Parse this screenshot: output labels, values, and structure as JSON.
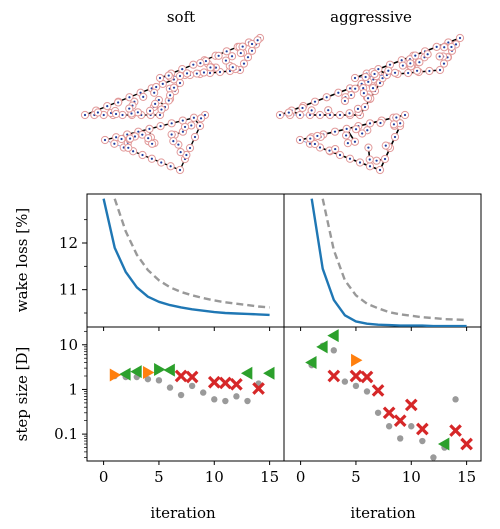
{
  "colors": {
    "blue": "#1f77b4",
    "orange": "#ff7f0e",
    "green": "#2ca02c",
    "red": "#d62728",
    "gray": "#9a9a9a",
    "dash_gray": "#999999",
    "turbine_ring": "#e29a9a",
    "turbine_dot": "#1f3fa0",
    "layout_line": "#000000"
  },
  "layout_titles": {
    "left": "soft",
    "right": "aggressive"
  },
  "axes_text": {
    "wake_ylabel": "wake loss [%]",
    "step_ylabel": "step size [D]",
    "xlabel_left": "iteration",
    "xlabel_right": "iteration"
  },
  "chart_data": [
    {
      "type": "line",
      "panel": "wake-soft",
      "ylabel": "wake loss [%]",
      "xlim": [
        -1.5,
        16.3
      ],
      "ylim": [
        10.2,
        13.05
      ],
      "yticks": [
        11,
        12
      ],
      "minor_yticks": [
        10.5,
        11.5,
        12.5
      ],
      "xticks": [
        0,
        5,
        10,
        15
      ],
      "series": [
        {
          "style": "solid-blue",
          "x": [
            0,
            1,
            2,
            3,
            4,
            5,
            6,
            7,
            8,
            9,
            10,
            11,
            12,
            13,
            14,
            15
          ],
          "y": [
            12.95,
            11.9,
            11.38,
            11.05,
            10.85,
            10.74,
            10.67,
            10.62,
            10.58,
            10.55,
            10.52,
            10.5,
            10.49,
            10.48,
            10.47,
            10.46
          ]
        },
        {
          "style": "dashed-gray",
          "x": [
            1,
            2,
            3,
            4,
            5,
            6,
            7,
            8,
            9,
            10,
            11,
            12,
            13,
            14,
            15
          ],
          "y": [
            12.95,
            12.25,
            11.75,
            11.42,
            11.2,
            11.05,
            10.95,
            10.88,
            10.82,
            10.77,
            10.73,
            10.7,
            10.67,
            10.64,
            10.62
          ]
        }
      ]
    },
    {
      "type": "line",
      "panel": "wake-aggressive",
      "xlim": [
        -1.5,
        16.3
      ],
      "ylim": [
        10.2,
        13.05
      ],
      "xticks": [
        0,
        5,
        10,
        15
      ],
      "series": [
        {
          "style": "solid-blue",
          "x": [
            1,
            2,
            3,
            4,
            5,
            6,
            7,
            8,
            9,
            10,
            11,
            12,
            13,
            14,
            15
          ],
          "y": [
            12.95,
            11.45,
            10.78,
            10.45,
            10.32,
            10.27,
            10.25,
            10.24,
            10.23,
            10.23,
            10.23,
            10.22,
            10.22,
            10.22,
            10.22
          ]
        },
        {
          "style": "dashed-gray",
          "x": [
            2,
            3,
            4,
            5,
            6,
            7,
            8,
            9,
            10,
            11,
            12,
            13,
            14,
            15
          ],
          "y": [
            12.95,
            11.85,
            11.2,
            10.88,
            10.7,
            10.6,
            10.52,
            10.47,
            10.44,
            10.41,
            10.39,
            10.37,
            10.36,
            10.35
          ]
        }
      ]
    },
    {
      "type": "scatter",
      "panel": "step-soft",
      "ylabel": "step size [D]",
      "yscale": "log",
      "xlabel": "iteration",
      "xlim": [
        -1.5,
        16.3
      ],
      "ylim": [
        0.025,
        25
      ],
      "yticks": [
        0.1,
        1,
        10
      ],
      "ytick_labels": [
        "0.1",
        "1",
        "10"
      ],
      "xticks": [
        0,
        5,
        10,
        15
      ],
      "xtick_labels": [
        "0",
        "5",
        "10",
        "15"
      ],
      "series": [
        {
          "marker": "gray-circle",
          "x": [
            1,
            2,
            3,
            4,
            5,
            6,
            7,
            8,
            9,
            10,
            11,
            12,
            13,
            14
          ],
          "y": [
            2.0,
            1.9,
            1.9,
            1.7,
            1.6,
            1.1,
            0.75,
            1.2,
            0.85,
            0.6,
            0.55,
            0.7,
            0.55,
            1.35
          ]
        },
        {
          "marker": "orange-right-triangle",
          "x": [
            1,
            4
          ],
          "y": [
            2.1,
            2.4
          ]
        },
        {
          "marker": "green-right-triangle",
          "x": [
            5
          ],
          "y": [
            2.8
          ]
        },
        {
          "marker": "green-left-triangle",
          "x": [
            2,
            3,
            6,
            13,
            15
          ],
          "y": [
            2.2,
            2.5,
            2.7,
            2.3,
            2.3
          ]
        },
        {
          "marker": "red-x",
          "x": [
            7,
            8,
            10,
            11,
            12,
            14
          ],
          "y": [
            2.0,
            1.9,
            1.45,
            1.4,
            1.3,
            1.05
          ]
        }
      ]
    },
    {
      "type": "scatter",
      "panel": "step-aggressive",
      "yscale": "log",
      "xlabel": "iteration",
      "xlim": [
        -1.5,
        16.3
      ],
      "ylim": [
        0.025,
        25
      ],
      "xticks": [
        0,
        5,
        10,
        15
      ],
      "xtick_labels": [
        "0",
        "5",
        "10",
        "15"
      ],
      "series": [
        {
          "marker": "gray-circle",
          "x": [
            1,
            2,
            3,
            4,
            5,
            6,
            7,
            8,
            9,
            10,
            11,
            12,
            13,
            14
          ],
          "y": [
            3.5,
            9.5,
            7.5,
            1.5,
            1.2,
            0.9,
            0.3,
            0.15,
            0.08,
            0.15,
            0.07,
            0.03,
            0.05,
            0.6
          ]
        },
        {
          "marker": "green-left-triangle",
          "x": [
            1,
            2,
            3,
            13
          ],
          "y": [
            4.0,
            9.0,
            16.0,
            0.06
          ]
        },
        {
          "marker": "orange-right-triangle",
          "x": [
            5
          ],
          "y": [
            4.5
          ]
        },
        {
          "marker": "red-x",
          "x": [
            3,
            5,
            6,
            7,
            8,
            9,
            10,
            11,
            14,
            15
          ],
          "y": [
            2.0,
            2.0,
            1.9,
            0.95,
            0.3,
            0.2,
            0.45,
            0.13,
            0.12,
            0.06
          ]
        }
      ]
    }
  ],
  "layouts": {
    "soft": {
      "farms": [
        [
          [
            20,
            55
          ],
          [
            120,
            15
          ],
          [
            95,
            55
          ]
        ],
        [
          [
            95,
            18
          ],
          [
            195,
            -22
          ],
          [
            175,
            10
          ]
        ],
        [
          [
            40,
            80
          ],
          [
            140,
            55
          ],
          [
            115,
            110
          ]
        ]
      ]
    },
    "aggressive": {
      "farms": [
        [
          [
            215,
            55
          ],
          [
            320,
            15
          ],
          [
            295,
            55
          ]
        ],
        [
          [
            290,
            18
          ],
          [
            395,
            -22
          ],
          [
            375,
            10
          ]
        ],
        [
          [
            235,
            80
          ],
          [
            340,
            55
          ],
          [
            315,
            110
          ]
        ]
      ]
    }
  }
}
